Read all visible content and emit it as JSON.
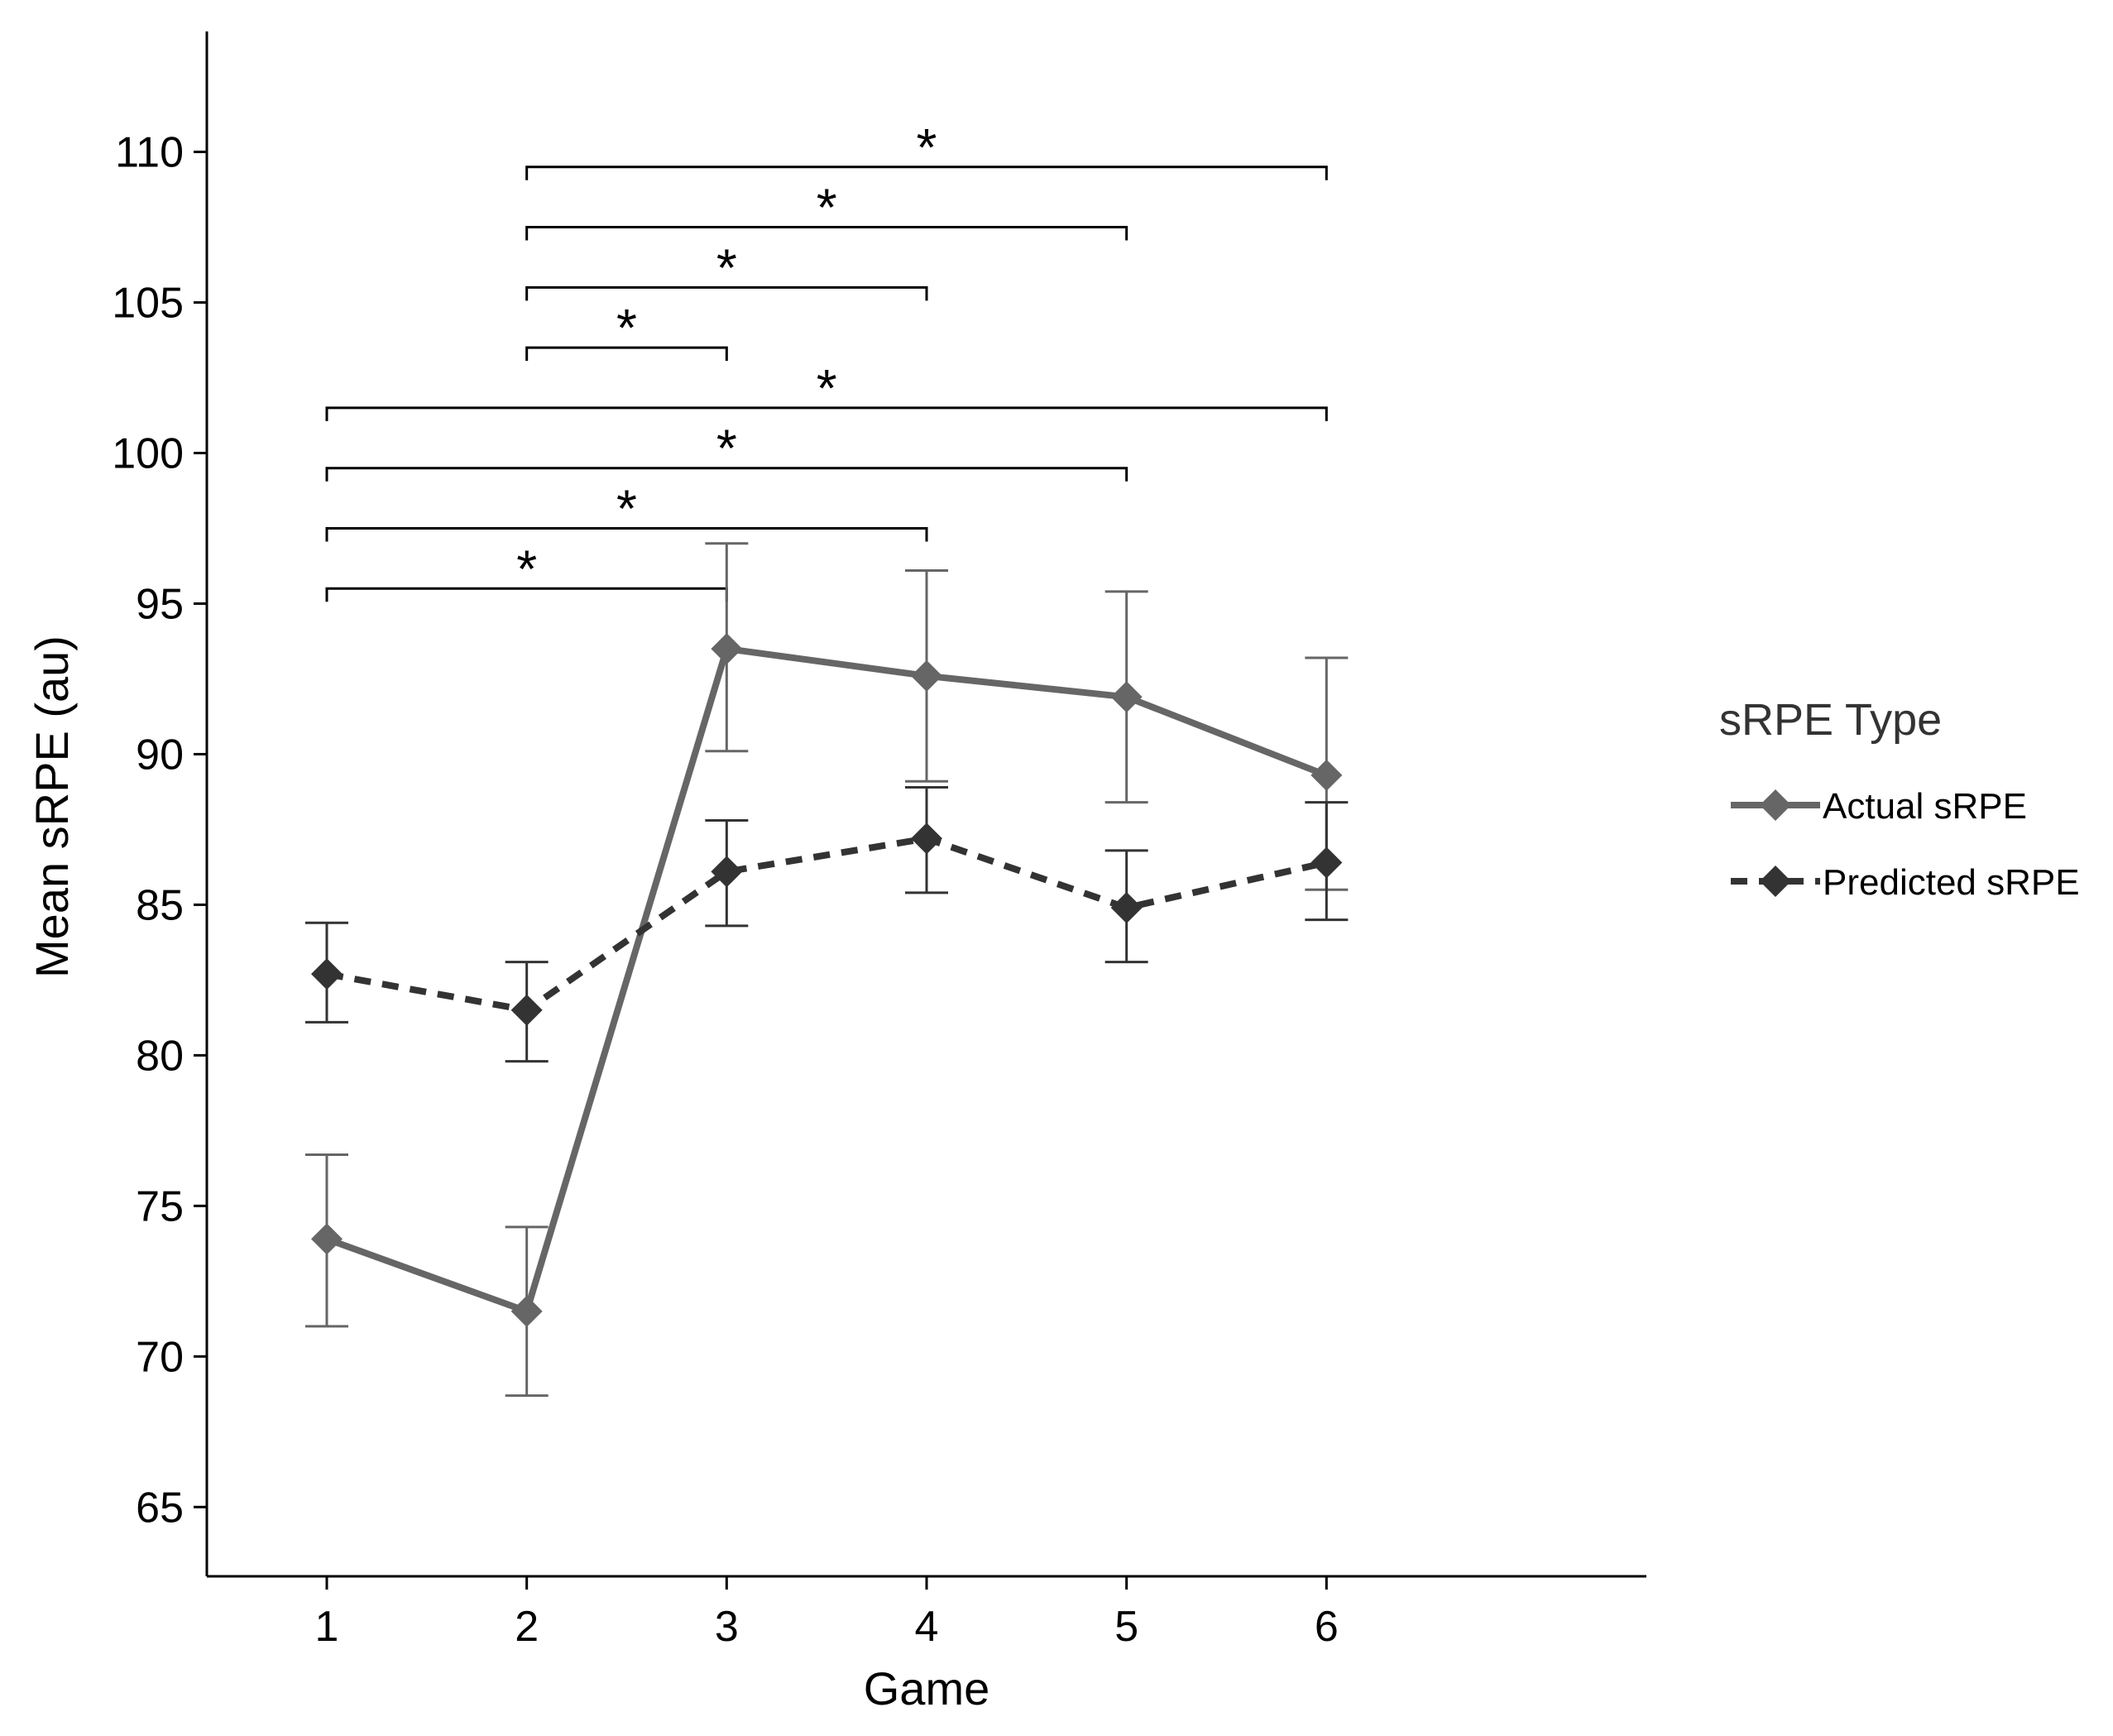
{
  "chart_data": {
    "type": "line",
    "title": "",
    "xlabel": "Game",
    "ylabel": "Mean sRPE (au)",
    "x": [
      1,
      2,
      3,
      4,
      5,
      6
    ],
    "x_tick_labels": [
      "1",
      "2",
      "3",
      "4",
      "5",
      "6"
    ],
    "xlim": [
      0.4,
      7.6
    ],
    "ylim": [
      62.7,
      114
    ],
    "y_ticks": [
      65,
      70,
      75,
      80,
      85,
      90,
      95,
      100,
      105,
      110
    ],
    "y_tick_labels": [
      "65",
      "70",
      "75",
      "80",
      "85",
      "90",
      "95",
      "100",
      "105",
      "110"
    ],
    "grid": false,
    "legend": {
      "title": "sRPE Type",
      "position": "right"
    },
    "series": [
      {
        "name": "Actual sRPE",
        "color": "#666666",
        "line_style": "solid",
        "values": [
          73.9,
          71.5,
          93.5,
          92.6,
          91.9,
          89.3
        ],
        "error_low": [
          71.0,
          68.7,
          90.1,
          89.1,
          88.4,
          85.5
        ],
        "error_high": [
          76.7,
          74.3,
          97.0,
          96.1,
          95.4,
          93.2
        ]
      },
      {
        "name": "Predicted sRPE",
        "color": "#333333",
        "line_style": "dashed",
        "values": [
          82.7,
          81.5,
          86.1,
          87.2,
          84.9,
          86.4
        ],
        "error_low": [
          81.1,
          79.8,
          84.3,
          85.4,
          83.1,
          84.5
        ],
        "error_high": [
          84.4,
          83.1,
          87.8,
          88.9,
          86.8,
          88.4
        ]
      }
    ],
    "significance_brackets": [
      {
        "from": 2,
        "to": 6,
        "y": 109.5,
        "label": "*"
      },
      {
        "from": 2,
        "to": 5,
        "y": 107.5,
        "label": "*"
      },
      {
        "from": 2,
        "to": 4,
        "y": 105.5,
        "label": "*"
      },
      {
        "from": 2,
        "to": 3,
        "y": 103.5,
        "label": "*"
      },
      {
        "from": 1,
        "to": 6,
        "y": 101.5,
        "label": "*"
      },
      {
        "from": 1,
        "to": 5,
        "y": 99.5,
        "label": "*"
      },
      {
        "from": 1,
        "to": 4,
        "y": 97.5,
        "label": "*"
      },
      {
        "from": 1,
        "to": 3,
        "y": 95.5,
        "label": "*"
      }
    ]
  }
}
